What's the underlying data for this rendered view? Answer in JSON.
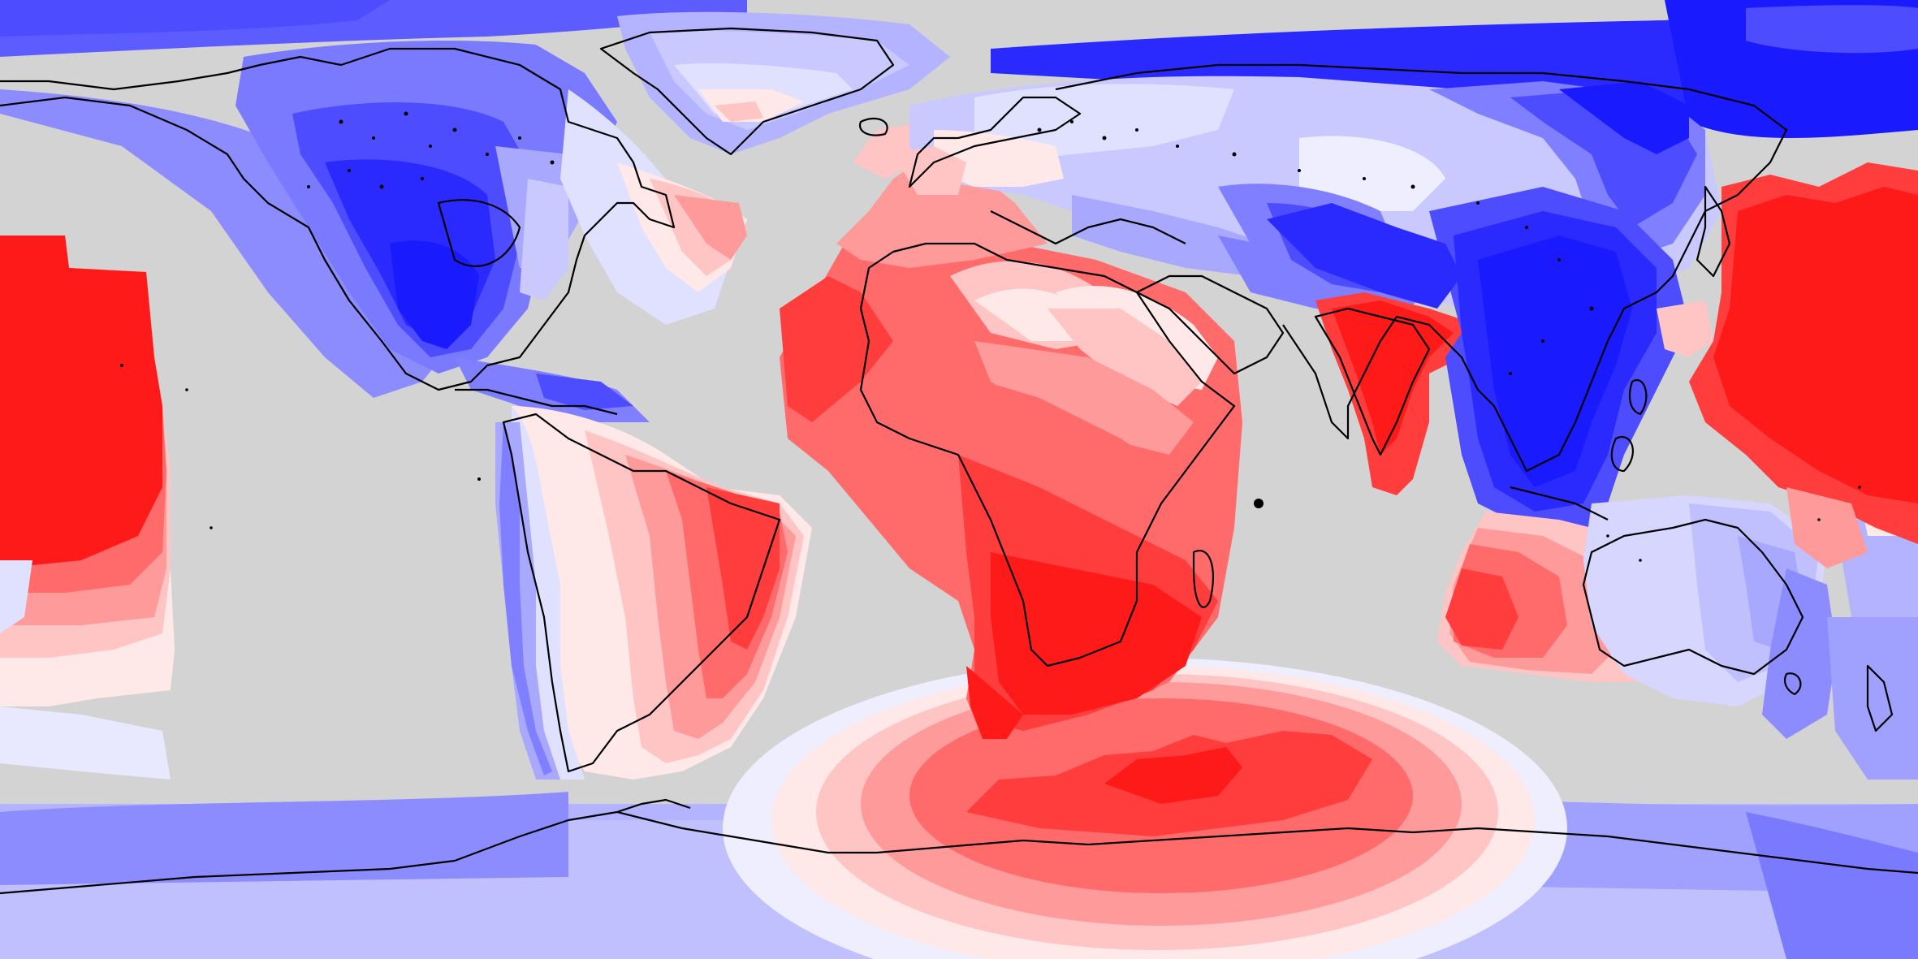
{
  "map": {
    "projection": "equirectangular",
    "colors": {
      "ocean_mask": "#d3d3d3",
      "coastline": "#000000",
      "red_levels": [
        "#ff0f0f",
        "#ff3d3d",
        "#ff6b6b",
        "#ff9a9a",
        "#ffc4c4",
        "#ffe8e8"
      ],
      "blue_levels": [
        "#e8e8ff",
        "#c9c9ff",
        "#a8a8ff",
        "#7f7fff",
        "#4d4dff",
        "#1a1aff"
      ]
    },
    "regions": [
      "north-america",
      "greenland",
      "south-america",
      "europe",
      "asia",
      "africa",
      "india",
      "southeast-asia",
      "australia",
      "antarctica",
      "pacific-anomaly",
      "north-atlantic",
      "south-atlantic",
      "indian-ocean",
      "southern-ocean"
    ]
  }
}
